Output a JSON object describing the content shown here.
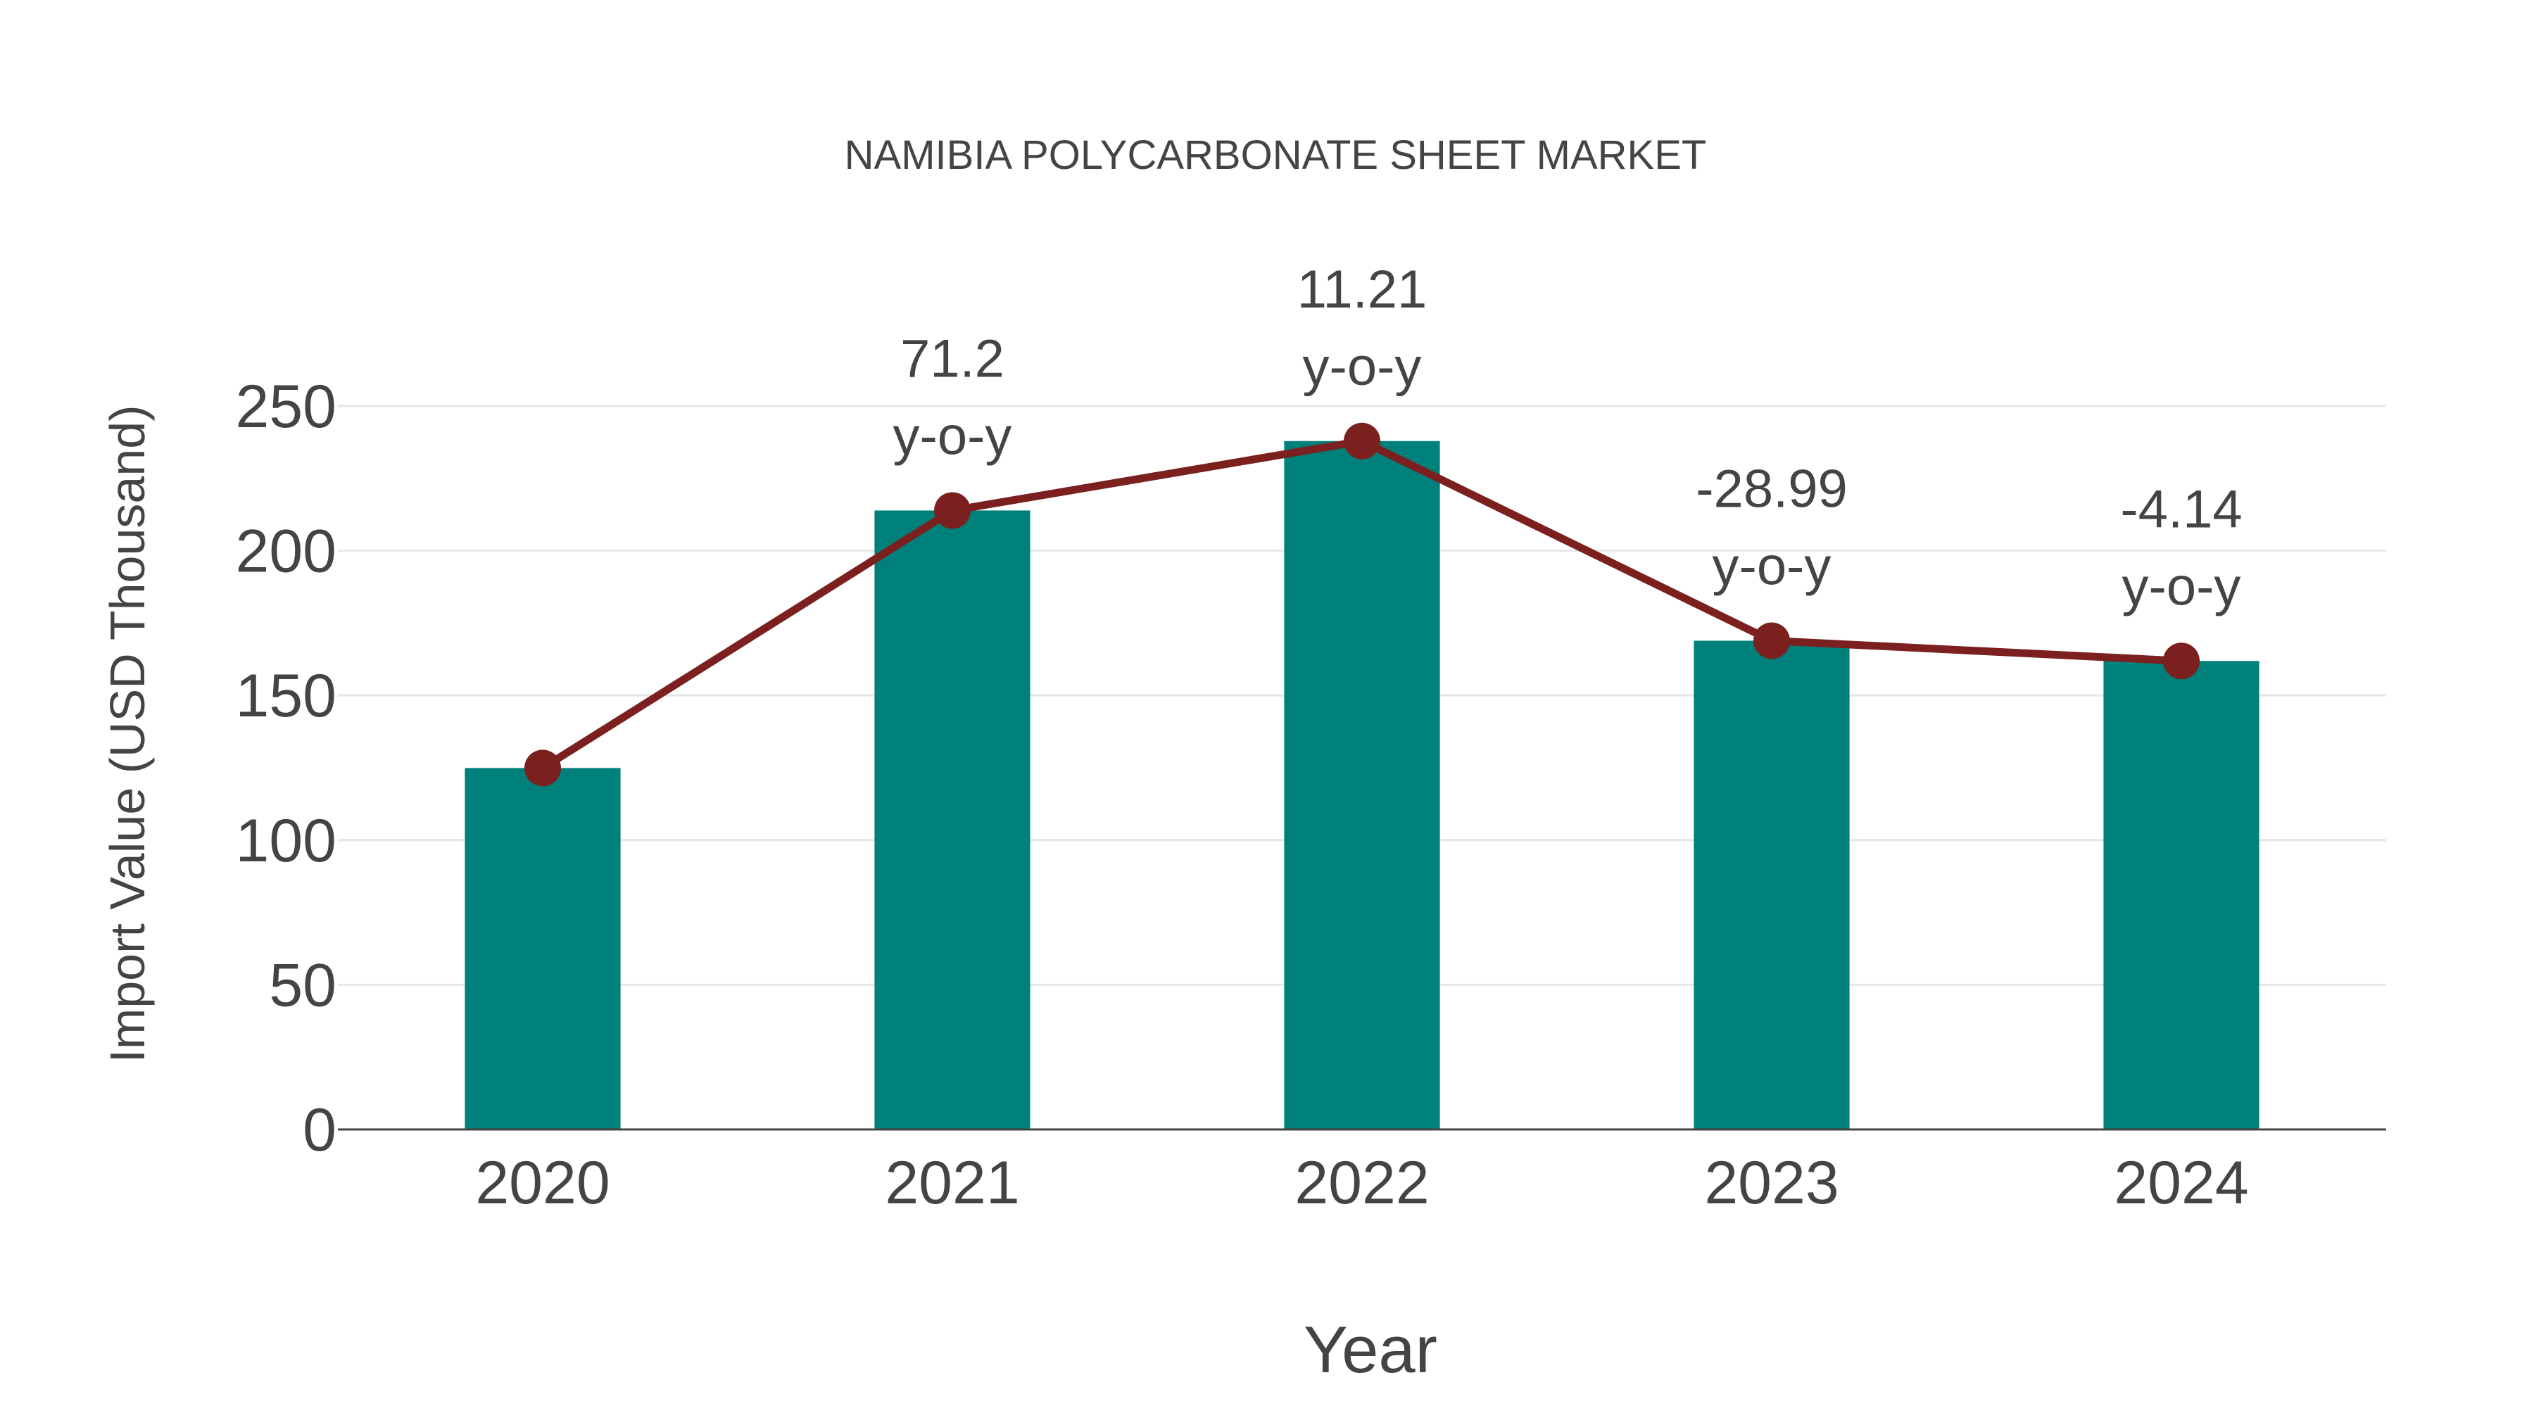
{
  "chart_data": {
    "type": "bar",
    "title": "NAMIBIA POLYCARBONATE SHEET MARKET",
    "xlabel": "Year",
    "ylabel": "Import Value (USD Thousand)",
    "categories": [
      "2020",
      "2021",
      "2022",
      "2023",
      "2024"
    ],
    "series": [
      {
        "name": "Import Value",
        "type": "bar",
        "color": "#00807A",
        "values": [
          124.9,
          213.9,
          237.9,
          168.9,
          161.9
        ]
      },
      {
        "name": "Trend",
        "type": "line",
        "color": "#7B1F1F",
        "values": [
          124.9,
          213.9,
          237.9,
          168.9,
          161.9
        ]
      }
    ],
    "annotations": [
      {
        "category": "2021",
        "value": "71.2",
        "suffix": "y-o-y"
      },
      {
        "category": "2022",
        "value": "11.21",
        "suffix": "y-o-y"
      },
      {
        "category": "2023",
        "value": "-28.99",
        "suffix": "y-o-y"
      },
      {
        "category": "2024",
        "value": "-4.14",
        "suffix": "y-o-y"
      }
    ],
    "yticks": [
      "0",
      "50",
      "100",
      "150",
      "200",
      "250"
    ],
    "ylim": [
      0,
      250
    ],
    "grid": true,
    "legend": "none"
  },
  "colors": {
    "bar": "#00807A",
    "line": "#7B1F1F",
    "grid": "#E6E6E6",
    "axis": "#444444",
    "text": "#444444"
  }
}
